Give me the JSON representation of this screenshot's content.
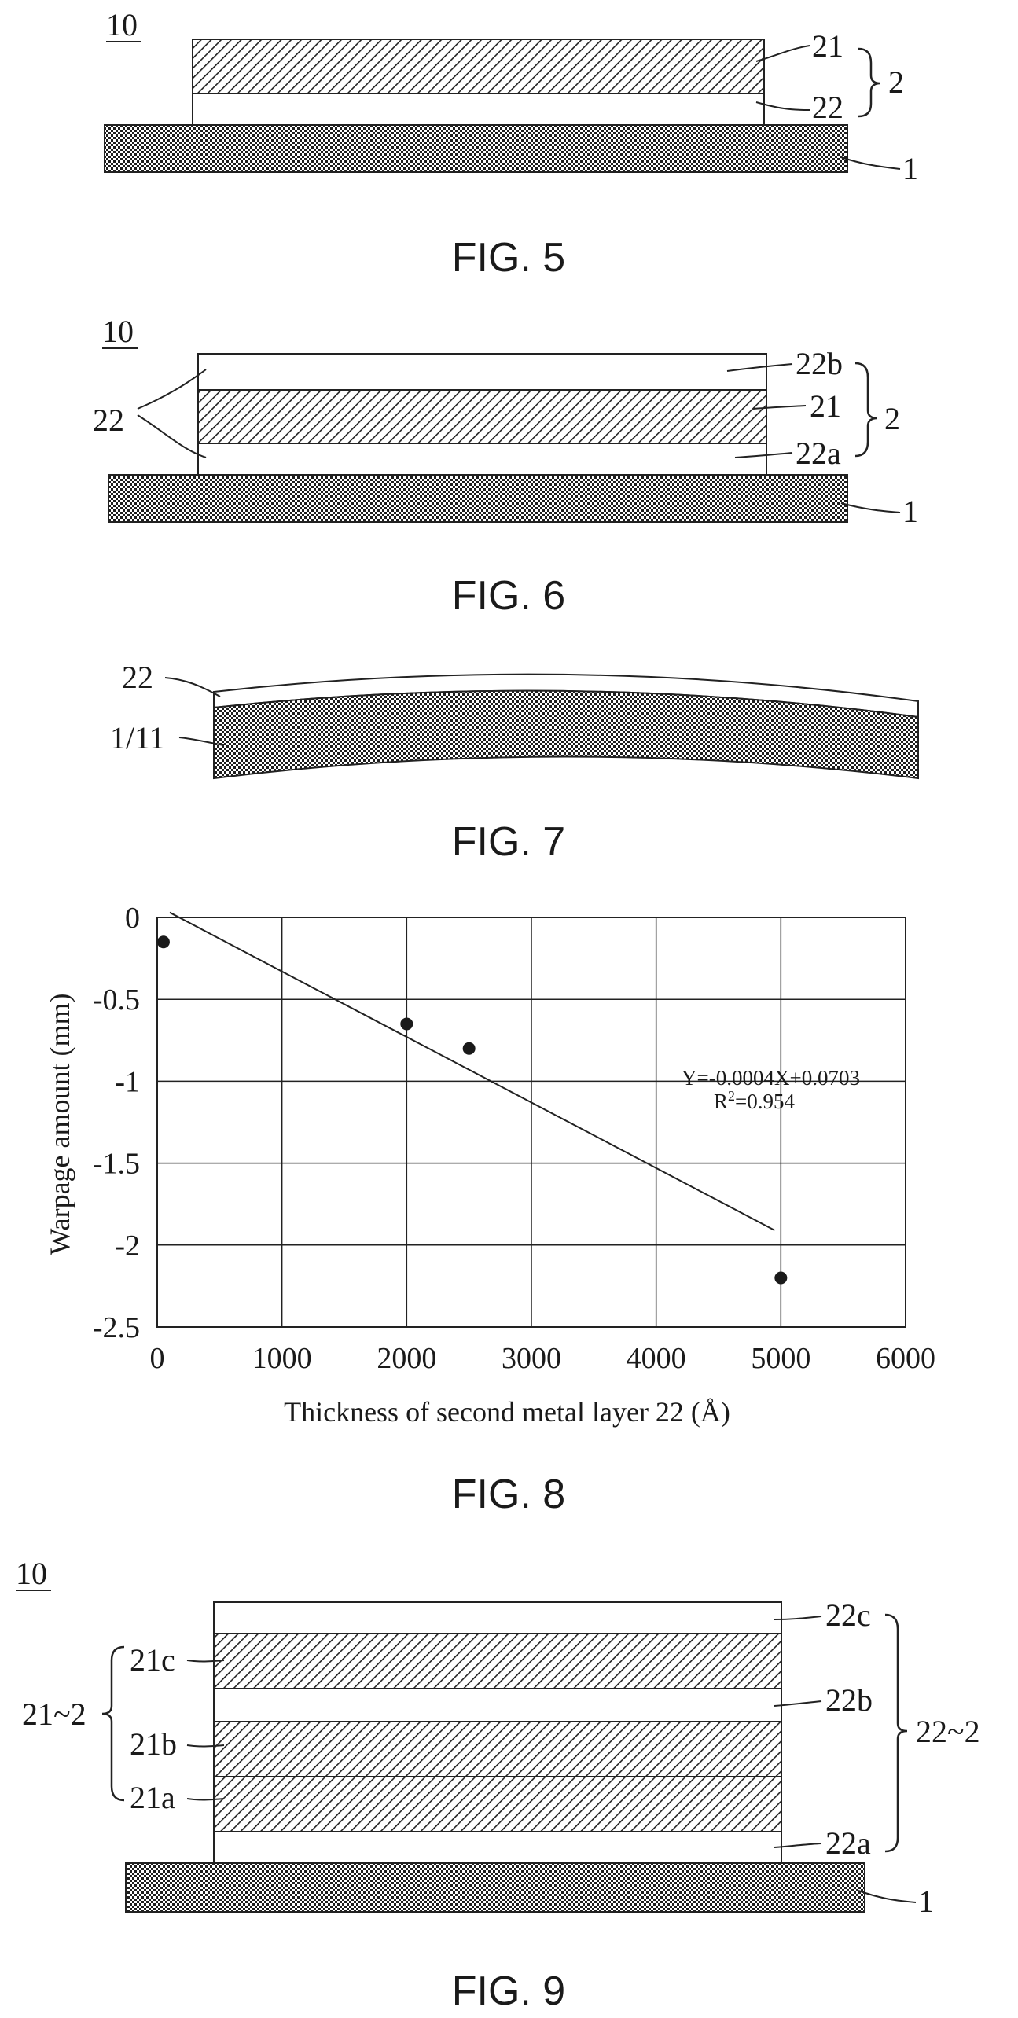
{
  "fig5": {
    "caption": "FIG. 5",
    "ref_device": "10",
    "labels": {
      "l21": "21",
      "l22": "22",
      "l2": "2",
      "l1": "1"
    }
  },
  "fig6": {
    "caption": "FIG. 6",
    "ref_device": "10",
    "labels": {
      "l22b": "22b",
      "l21": "21",
      "l22a": "22a",
      "l2": "2",
      "l22": "22",
      "l1": "1"
    }
  },
  "fig7": {
    "caption": "FIG. 7",
    "labels": {
      "l22": "22",
      "l1_11": "1/11"
    }
  },
  "fig8": {
    "caption": "FIG. 8",
    "chart_data": {
      "type": "scatter",
      "title": "",
      "xlabel": "Thickness of second metal layer 22 (Å)",
      "ylabel": "Warpage amount (mm)",
      "xlim": [
        0,
        6000
      ],
      "ylim": [
        -2.5,
        0
      ],
      "x_ticks": [
        "0",
        "1000",
        "2000",
        "3000",
        "4000",
        "5000",
        "6000"
      ],
      "y_ticks": [
        "0",
        "-0.5",
        "-1",
        "-1.5",
        "-2",
        "-2.5"
      ],
      "grid": true,
      "points": [
        {
          "x": 50,
          "y": -0.15
        },
        {
          "x": 2000,
          "y": -0.65
        },
        {
          "x": 2500,
          "y": -0.8
        },
        {
          "x": 5000,
          "y": -2.2
        }
      ],
      "trendline": {
        "slope": -0.0004,
        "intercept": 0.0703,
        "x_range": [
          100,
          4950
        ],
        "equation": "Y=-0.0004X+0.0703",
        "r2_prefix": "R",
        "r2_sup": "2",
        "r2_value": "=0.954"
      }
    }
  },
  "fig9": {
    "caption": "FIG. 9",
    "ref_device": "10",
    "labels": {
      "l22c": "22c",
      "l21c": "21c",
      "l22b": "22b",
      "l21b": "21b",
      "l21a": "21a",
      "l22a": "22a",
      "l21_2": "21~2",
      "l22_2": "22~2",
      "l1": "1"
    }
  }
}
